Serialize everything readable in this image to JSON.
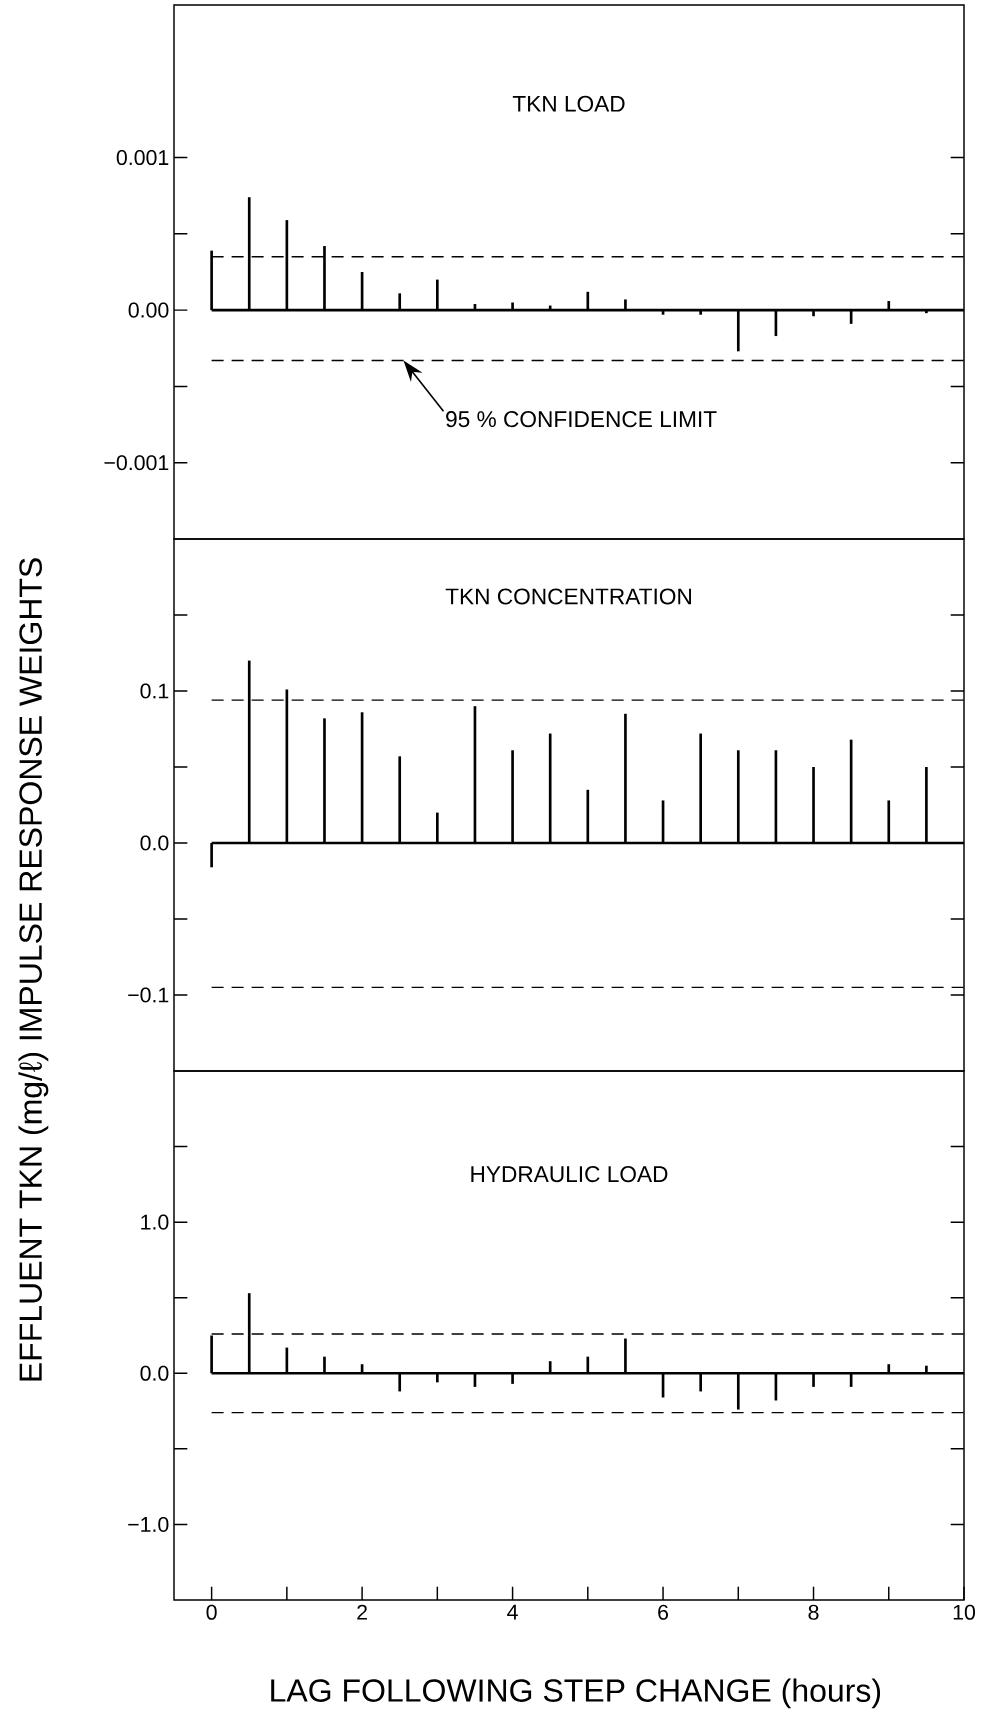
{
  "chart_data": [
    {
      "type": "bar",
      "title": "TKN LOAD",
      "xlim": [
        -0.5,
        10
      ],
      "ylim": [
        -0.0015,
        0.002
      ],
      "tick_labels": "y",
      "yticks": [
        {
          "value": 0.001,
          "label": "0.001"
        },
        {
          "value": 0.0005,
          "label": null
        },
        {
          "value": 0,
          "label": "0.00"
        },
        {
          "value": -0.0005,
          "label": null
        },
        {
          "value": -0.001,
          "label": "−0.001"
        }
      ],
      "x": [
        0,
        0.5,
        1,
        1.5,
        2,
        2.5,
        3,
        3.5,
        4,
        4.5,
        5,
        5.5,
        6,
        6.5,
        7,
        7.5,
        8,
        8.5,
        9,
        9.5
      ],
      "values": [
        0.00039,
        0.00074,
        0.00059,
        0.00042,
        0.00025,
        0.00011,
        0.0002,
        4e-05,
        5e-05,
        3e-05,
        0.00012,
        7e-05,
        -3e-05,
        -3e-05,
        -0.00027,
        -0.00017,
        -4e-05,
        -9e-05,
        6e-05,
        -2e-05
      ],
      "color": "#000000",
      "ref_lines": [
        {
          "axis": "y",
          "value": 0.00035,
          "line_style": "dashed"
        },
        {
          "axis": "y",
          "value": -0.00033,
          "line_style": "dashed",
          "label": "95 % CONFIDENCE LIMIT"
        }
      ]
    },
    {
      "type": "bar",
      "title": "TKN CONCENTRATION",
      "xlim": [
        -0.5,
        10
      ],
      "ylim": [
        -0.15,
        0.2
      ],
      "tick_labels": "y",
      "ylabel": "EFFLUENT TKN (mg/ℓ)  IMPULSE RESPONSE WEIGHTS",
      "yticks": [
        {
          "value": 0.15,
          "label": null
        },
        {
          "value": 0.1,
          "label": "0.1"
        },
        {
          "value": 0.05,
          "label": null
        },
        {
          "value": 0,
          "label": "0.0"
        },
        {
          "value": -0.05,
          "label": null
        },
        {
          "value": -0.1,
          "label": "−0.1"
        }
      ],
      "x": [
        0,
        0.5,
        1,
        1.5,
        2,
        2.5,
        3,
        3.5,
        4,
        4.5,
        5,
        5.5,
        6,
        6.5,
        7,
        7.5,
        8,
        8.5,
        9,
        9.5
      ],
      "values": [
        -0.016,
        0.12,
        0.101,
        0.082,
        0.086,
        0.057,
        0.02,
        0.09,
        0.061,
        0.072,
        0.035,
        0.085,
        0.028,
        0.072,
        0.061,
        0.061,
        0.05,
        0.068,
        0.028,
        0.05
      ],
      "color": "#000000",
      "ref_lines": [
        {
          "axis": "y",
          "value": 0.094,
          "line_style": "dashed"
        },
        {
          "axis": "y",
          "value": -0.095,
          "line_style": "dashed"
        }
      ]
    },
    {
      "type": "bar",
      "title": "HYDRAULIC LOAD",
      "xlim": [
        -0.5,
        10
      ],
      "ylim": [
        -1.5,
        2.0
      ],
      "xlabel": "LAG FOLLOWING STEP CHANGE (hours)",
      "xticks": [
        0,
        {
          "value": 1,
          "label": null
        },
        2,
        {
          "value": 3,
          "label": null
        },
        4,
        {
          "value": 5,
          "label": null
        },
        6,
        {
          "value": 7,
          "label": null
        },
        8,
        {
          "value": 9,
          "label": null
        },
        10
      ],
      "yticks": [
        {
          "value": 1.5,
          "label": null
        },
        {
          "value": 1.0,
          "label": "1.0"
        },
        {
          "value": 0.5,
          "label": null
        },
        {
          "value": 0,
          "label": "0.0"
        },
        {
          "value": -0.5,
          "label": null
        },
        {
          "value": -1.0,
          "label": "−1.0"
        }
      ],
      "x": [
        0,
        0.5,
        1,
        1.5,
        2,
        2.5,
        3,
        3.5,
        4,
        4.5,
        5,
        5.5,
        6,
        6.5,
        7,
        7.5,
        8,
        8.5,
        9,
        9.5
      ],
      "values": [
        0.25,
        0.53,
        0.17,
        0.11,
        0.06,
        -0.12,
        -0.06,
        -0.09,
        -0.07,
        0.08,
        0.11,
        0.23,
        -0.16,
        -0.12,
        -0.24,
        -0.18,
        -0.09,
        -0.09,
        0.06,
        0.05
      ],
      "color": "#000000",
      "ref_lines": [
        {
          "axis": "y",
          "value": 0.26,
          "line_style": "dashed"
        },
        {
          "axis": "y",
          "value": -0.26,
          "line_style": "dashed"
        }
      ]
    }
  ]
}
